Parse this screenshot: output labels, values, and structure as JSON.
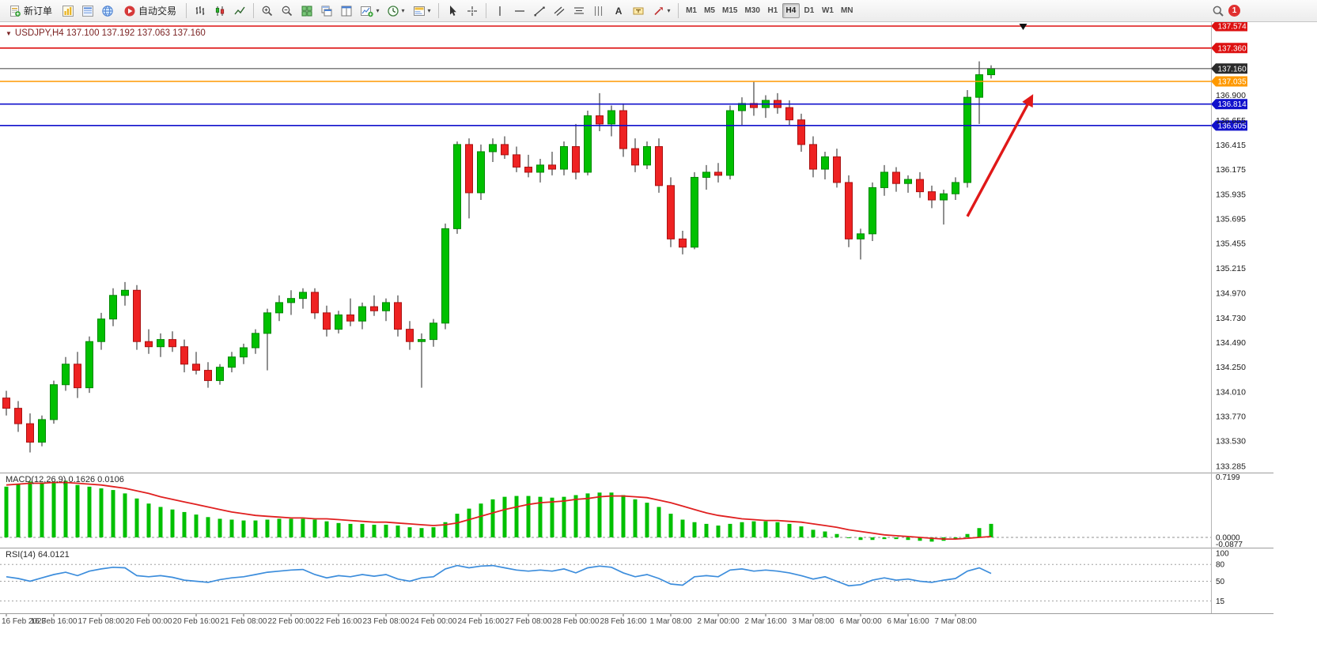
{
  "toolbar": {
    "new_order_label": "新订单",
    "autotrade_label": "自动交易",
    "timeframes": [
      "M1",
      "M5",
      "M15",
      "M30",
      "H1",
      "H4",
      "D1",
      "W1",
      "MN"
    ],
    "active_timeframe": "H4",
    "notification_count": "1"
  },
  "icons": {
    "caret": "▾",
    "title_marker": "▼",
    "text_tool": "A"
  },
  "chart_header": {
    "symbol_title": "USDJPY,H4 137.100 137.192 137.063 137.160"
  },
  "indicators": {
    "macd_label": "MACD(12,26,9) 0.1626 0.0106",
    "rsi_label": "RSI(14) 64.0121"
  },
  "colors": {
    "bull": "#00c000",
    "bull_border": "#008800",
    "bear": "#ee2222",
    "bear_border": "#aa1111",
    "wick": "#222222",
    "macd_bar": "#00c000",
    "macd_signal": "#e02020",
    "rsi_line": "#3c8ddc",
    "arrow": "#e01818",
    "axis_text": "#1a1a1a",
    "time_text": "#444444",
    "current_price_line": "#555555"
  },
  "chart_data": {
    "type": "candlestick",
    "symbol": "USDJPY",
    "timeframe": "H4",
    "open": "137.100",
    "high": "137.192",
    "low": "137.063",
    "close": "137.160",
    "price_axis_labels": [
      136.9,
      136.655,
      136.415,
      136.175,
      135.935,
      135.695,
      135.455,
      135.215,
      134.97,
      134.73,
      134.49,
      134.25,
      134.01,
      133.77,
      133.53,
      133.285
    ],
    "level_lines": [
      {
        "price": 137.574,
        "label": "137.574",
        "color": "#dd1111",
        "kind": "resistance-line"
      },
      {
        "price": 137.36,
        "label": "137.360",
        "color": "#dd1111",
        "kind": "resistance-line"
      },
      {
        "price": 137.16,
        "label": "137.160",
        "color": "#2b2b2b",
        "kind": "current-price",
        "current": true
      },
      {
        "price": 137.035,
        "label": "137.035",
        "color": "#ff9900",
        "kind": "level-line"
      },
      {
        "price": 136.814,
        "label": "136.814",
        "color": "#1111cc",
        "kind": "support-line"
      },
      {
        "price": 136.605,
        "label": "136.605",
        "color": "#1111cc",
        "kind": "support-line"
      }
    ],
    "candles": [
      [
        133.95,
        134.02,
        133.78,
        133.85
      ],
      [
        133.85,
        133.92,
        133.62,
        133.7
      ],
      [
        133.7,
        133.8,
        133.42,
        133.52
      ],
      [
        133.52,
        133.78,
        133.48,
        133.74
      ],
      [
        133.74,
        134.12,
        133.7,
        134.08
      ],
      [
        134.08,
        134.35,
        134.02,
        134.28
      ],
      [
        134.28,
        134.4,
        133.95,
        134.05
      ],
      [
        134.05,
        134.55,
        134.0,
        134.5
      ],
      [
        134.5,
        134.78,
        134.42,
        134.72
      ],
      [
        134.72,
        135.02,
        134.65,
        134.95
      ],
      [
        134.95,
        135.08,
        134.85,
        135.0
      ],
      [
        135.0,
        135.05,
        134.42,
        134.5
      ],
      [
        134.5,
        134.62,
        134.38,
        134.45
      ],
      [
        134.45,
        134.58,
        134.35,
        134.52
      ],
      [
        134.52,
        134.6,
        134.4,
        134.45
      ],
      [
        134.45,
        134.52,
        134.2,
        134.28
      ],
      [
        134.28,
        134.4,
        134.18,
        134.22
      ],
      [
        134.22,
        134.3,
        134.05,
        134.12
      ],
      [
        134.12,
        134.28,
        134.08,
        134.25
      ],
      [
        134.25,
        134.4,
        134.2,
        134.35
      ],
      [
        134.35,
        134.48,
        134.28,
        134.44
      ],
      [
        134.44,
        134.62,
        134.38,
        134.58
      ],
      [
        134.58,
        134.82,
        134.22,
        134.78
      ],
      [
        134.78,
        134.95,
        134.7,
        134.88
      ],
      [
        134.88,
        135.0,
        134.76,
        134.92
      ],
      [
        134.92,
        135.02,
        134.82,
        134.98
      ],
      [
        134.98,
        135.02,
        134.72,
        134.78
      ],
      [
        134.78,
        134.85,
        134.55,
        134.62
      ],
      [
        134.62,
        134.8,
        134.58,
        134.76
      ],
      [
        134.76,
        134.92,
        134.65,
        134.7
      ],
      [
        134.7,
        134.88,
        134.62,
        134.84
      ],
      [
        134.84,
        134.95,
        134.75,
        134.8
      ],
      [
        134.8,
        134.92,
        134.7,
        134.88
      ],
      [
        134.88,
        134.95,
        134.55,
        134.62
      ],
      [
        134.62,
        134.7,
        134.42,
        134.5
      ],
      [
        134.5,
        134.58,
        134.05,
        134.52
      ],
      [
        134.52,
        134.72,
        134.45,
        134.68
      ],
      [
        134.68,
        135.65,
        134.62,
        135.6
      ],
      [
        135.6,
        136.45,
        135.55,
        136.42
      ],
      [
        136.42,
        136.48,
        135.7,
        135.95
      ],
      [
        135.95,
        136.42,
        135.88,
        136.35
      ],
      [
        136.35,
        136.48,
        136.25,
        136.42
      ],
      [
        136.42,
        136.5,
        136.28,
        136.32
      ],
      [
        136.32,
        136.4,
        136.15,
        136.2
      ],
      [
        136.2,
        136.32,
        136.1,
        136.15
      ],
      [
        136.15,
        136.28,
        136.05,
        136.22
      ],
      [
        136.22,
        136.35,
        136.12,
        136.18
      ],
      [
        136.18,
        136.45,
        136.12,
        136.4
      ],
      [
        136.4,
        136.62,
        136.08,
        136.15
      ],
      [
        136.15,
        136.75,
        136.12,
        136.7
      ],
      [
        136.7,
        136.92,
        136.55,
        136.62
      ],
      [
        136.62,
        136.8,
        136.5,
        136.75
      ],
      [
        136.75,
        136.82,
        136.3,
        136.38
      ],
      [
        136.38,
        136.48,
        136.15,
        136.22
      ],
      [
        136.22,
        136.45,
        136.18,
        136.4
      ],
      [
        136.4,
        136.48,
        135.95,
        136.02
      ],
      [
        136.02,
        136.1,
        135.42,
        135.5
      ],
      [
        135.5,
        135.58,
        135.35,
        135.42
      ],
      [
        135.42,
        136.15,
        135.4,
        136.1
      ],
      [
        136.1,
        136.22,
        135.98,
        136.15
      ],
      [
        136.15,
        136.24,
        136.05,
        136.12
      ],
      [
        136.12,
        136.8,
        136.08,
        136.75
      ],
      [
        136.75,
        136.88,
        136.6,
        136.82
      ],
      [
        136.82,
        137.03,
        136.7,
        136.78
      ],
      [
        136.78,
        136.9,
        136.68,
        136.85
      ],
      [
        136.85,
        136.92,
        136.72,
        136.78
      ],
      [
        136.78,
        136.85,
        136.6,
        136.66
      ],
      [
        136.66,
        136.72,
        136.35,
        136.42
      ],
      [
        136.42,
        136.5,
        136.1,
        136.18
      ],
      [
        136.18,
        136.35,
        136.08,
        136.3
      ],
      [
        136.3,
        136.38,
        136.0,
        136.05
      ],
      [
        136.05,
        136.12,
        135.42,
        135.5
      ],
      [
        135.5,
        135.6,
        135.3,
        135.55
      ],
      [
        135.55,
        136.05,
        135.48,
        136.0
      ],
      [
        136.0,
        136.22,
        135.92,
        136.15
      ],
      [
        136.15,
        136.2,
        135.96,
        136.04
      ],
      [
        136.04,
        136.12,
        135.95,
        136.08
      ],
      [
        136.08,
        136.15,
        135.9,
        135.96
      ],
      [
        135.96,
        136.02,
        135.8,
        135.88
      ],
      [
        135.88,
        135.98,
        135.64,
        135.94
      ],
      [
        135.94,
        136.1,
        135.88,
        136.05
      ],
      [
        136.05,
        136.95,
        136.0,
        136.88
      ],
      [
        136.88,
        137.23,
        136.62,
        137.1
      ],
      [
        137.1,
        137.192,
        137.063,
        137.16
      ]
    ],
    "time_labels": [
      {
        "i": 0,
        "t": "16 Feb 2023"
      },
      {
        "i": 4,
        "t": "16 Feb 16:00"
      },
      {
        "i": 8,
        "t": "17 Feb 08:00"
      },
      {
        "i": 12,
        "t": "20 Feb 00:00"
      },
      {
        "i": 16,
        "t": "20 Feb 16:00"
      },
      {
        "i": 20,
        "t": "21 Feb 08:00"
      },
      {
        "i": 24,
        "t": "22 Feb 00:00"
      },
      {
        "i": 28,
        "t": "22 Feb 16:00"
      },
      {
        "i": 32,
        "t": "23 Feb 08:00"
      },
      {
        "i": 36,
        "t": "24 Feb 00:00"
      },
      {
        "i": 40,
        "t": "24 Feb 16:00"
      },
      {
        "i": 44,
        "t": "27 Feb 08:00"
      },
      {
        "i": 48,
        "t": "28 Feb 00:00"
      },
      {
        "i": 52,
        "t": "28 Feb 16:00"
      },
      {
        "i": 56,
        "t": "1 Mar 08:00"
      },
      {
        "i": 60,
        "t": "2 Mar 00:00"
      },
      {
        "i": 64,
        "t": "2 Mar 16:00"
      },
      {
        "i": 68,
        "t": "3 Mar 08:00"
      },
      {
        "i": 72,
        "t": "6 Mar 00:00"
      },
      {
        "i": 76,
        "t": "6 Mar 16:00"
      },
      {
        "i": 80,
        "t": "7 Mar 08:00"
      }
    ],
    "macd": {
      "histogram": [
        0.6,
        0.63,
        0.66,
        0.65,
        0.66,
        0.67,
        0.62,
        0.6,
        0.58,
        0.56,
        0.52,
        0.46,
        0.4,
        0.36,
        0.33,
        0.3,
        0.27,
        0.24,
        0.22,
        0.21,
        0.2,
        0.2,
        0.21,
        0.22,
        0.22,
        0.22,
        0.21,
        0.19,
        0.17,
        0.16,
        0.16,
        0.15,
        0.15,
        0.14,
        0.12,
        0.11,
        0.12,
        0.18,
        0.28,
        0.34,
        0.4,
        0.45,
        0.48,
        0.49,
        0.49,
        0.48,
        0.47,
        0.48,
        0.5,
        0.52,
        0.53,
        0.53,
        0.5,
        0.45,
        0.41,
        0.36,
        0.28,
        0.21,
        0.18,
        0.16,
        0.14,
        0.16,
        0.18,
        0.19,
        0.19,
        0.18,
        0.16,
        0.13,
        0.09,
        0.07,
        0.04,
        0.0,
        -0.03,
        -0.03,
        -0.02,
        -0.02,
        -0.03,
        -0.04,
        -0.05,
        -0.04,
        -0.02,
        0.04,
        0.11,
        0.16
      ],
      "signal": [
        0.62,
        0.63,
        0.64,
        0.64,
        0.65,
        0.65,
        0.64,
        0.63,
        0.62,
        0.6,
        0.58,
        0.55,
        0.52,
        0.48,
        0.45,
        0.42,
        0.39,
        0.36,
        0.33,
        0.3,
        0.28,
        0.26,
        0.25,
        0.24,
        0.23,
        0.23,
        0.22,
        0.22,
        0.21,
        0.2,
        0.19,
        0.18,
        0.18,
        0.17,
        0.16,
        0.15,
        0.14,
        0.15,
        0.17,
        0.21,
        0.25,
        0.29,
        0.33,
        0.36,
        0.39,
        0.41,
        0.42,
        0.43,
        0.45,
        0.46,
        0.48,
        0.49,
        0.49,
        0.48,
        0.47,
        0.44,
        0.41,
        0.37,
        0.33,
        0.29,
        0.26,
        0.24,
        0.22,
        0.21,
        0.2,
        0.2,
        0.19,
        0.18,
        0.16,
        0.14,
        0.12,
        0.09,
        0.07,
        0.05,
        0.03,
        0.02,
        0.01,
        0.0,
        -0.01,
        -0.02,
        -0.02,
        -0.01,
        0.0,
        0.01
      ],
      "axis_top": "0.7199",
      "axis_zero": "0.0000",
      "axis_bottom": "-0.0877"
    },
    "rsi": {
      "values": [
        58,
        55,
        50,
        56,
        62,
        66,
        60,
        68,
        72,
        75,
        74,
        60,
        58,
        60,
        57,
        52,
        50,
        48,
        53,
        56,
        58,
        62,
        66,
        68,
        70,
        71,
        62,
        56,
        60,
        58,
        62,
        59,
        62,
        54,
        50,
        56,
        58,
        72,
        78,
        74,
        77,
        78,
        74,
        70,
        68,
        70,
        68,
        72,
        65,
        74,
        77,
        75,
        65,
        58,
        62,
        55,
        45,
        43,
        58,
        60,
        58,
        70,
        72,
        68,
        70,
        68,
        65,
        60,
        54,
        58,
        50,
        42,
        44,
        52,
        56,
        52,
        54,
        50,
        48,
        52,
        55,
        68,
        74,
        64
      ],
      "levels": [
        80,
        50,
        15
      ],
      "axis_labels": [
        {
          "v": 100,
          "t": "100"
        },
        {
          "v": 80,
          "t": "80"
        },
        {
          "v": 50,
          "t": "50"
        },
        {
          "v": 15,
          "t": "15"
        }
      ]
    },
    "trend_arrow": {
      "from_index": 81,
      "from_price": 135.72,
      "to_index": 86.4,
      "to_price": 136.88
    },
    "top_marker_index": 85.7
  }
}
